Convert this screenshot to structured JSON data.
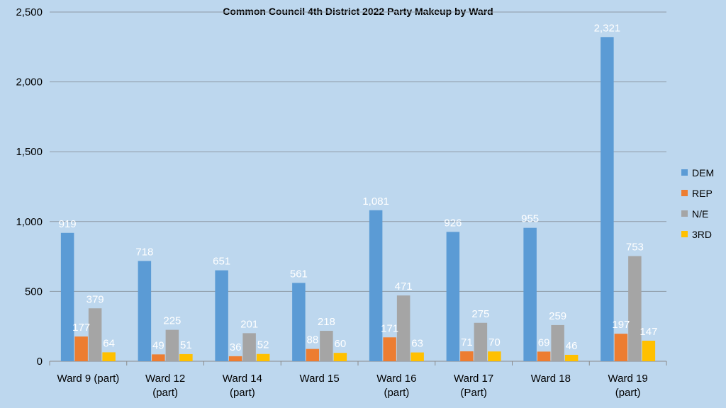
{
  "chart_data": {
    "type": "bar",
    "title": "Common Council 4th District 2022 Party Makeup by Ward",
    "categories": [
      [
        "Ward 9 (part)"
      ],
      [
        "Ward 12",
        "(part)"
      ],
      [
        "Ward 14",
        "(part)"
      ],
      [
        "Ward 15"
      ],
      [
        "Ward 16",
        "(part)"
      ],
      [
        "Ward 17",
        "(Part)"
      ],
      [
        "Ward 18"
      ],
      [
        "Ward 19",
        "(part)"
      ]
    ],
    "series": [
      {
        "name": "DEM",
        "color": "#5b9bd5",
        "values": [
          919,
          718,
          651,
          561,
          1081,
          926,
          955,
          2321
        ],
        "labels": [
          "919",
          "718",
          "651",
          "561",
          "1,081",
          "926",
          "955",
          "2,321"
        ]
      },
      {
        "name": "REP",
        "color": "#ed7d31",
        "values": [
          177,
          49,
          36,
          88,
          171,
          71,
          69,
          197
        ],
        "labels": [
          "177",
          "49",
          "36",
          "88",
          "171",
          "71",
          "69",
          "197"
        ]
      },
      {
        "name": "N/E",
        "color": "#a5a5a5",
        "values": [
          379,
          225,
          201,
          218,
          471,
          275,
          259,
          753
        ],
        "labels": [
          "379",
          "225",
          "201",
          "218",
          "471",
          "275",
          "259",
          "753"
        ]
      },
      {
        "name": "3RD",
        "color": "#ffc000",
        "values": [
          64,
          51,
          52,
          60,
          63,
          70,
          46,
          147
        ],
        "labels": [
          "64",
          "51",
          "52",
          "60",
          "63",
          "70",
          "46",
          "147"
        ]
      }
    ],
    "ylim": [
      0,
      2500
    ],
    "yticks": [
      0,
      500,
      1000,
      1500,
      2000,
      2500
    ],
    "ytick_labels": [
      "0",
      "500",
      "1,000",
      "1,500",
      "2,000",
      "2,500"
    ],
    "grid": true,
    "legend_position": "right"
  }
}
